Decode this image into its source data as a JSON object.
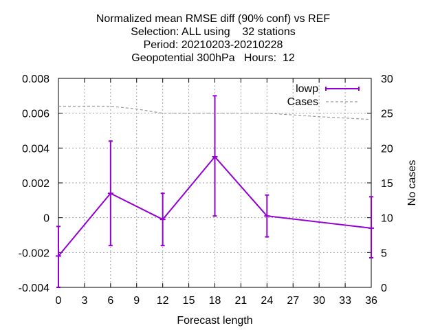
{
  "chart_data": {
    "type": "line",
    "title_lines": [
      "Normalized mean RMSE diff (90% conf) vs REF",
      "Selection: ALL using    32 stations",
      "Period: 20210203-20210228",
      "Geopotential 300hPa   Hours:  12"
    ],
    "xlabel": "Forecast length",
    "ylabel": "",
    "y2label": "No cases",
    "xlim": [
      0,
      36
    ],
    "ylim": [
      -0.004,
      0.008
    ],
    "y2lim": [
      0,
      30
    ],
    "x_ticks": [
      0,
      3,
      6,
      9,
      12,
      15,
      18,
      21,
      24,
      27,
      30,
      33,
      36
    ],
    "y_ticks": [
      -0.004,
      -0.002,
      0,
      0.002,
      0.004,
      0.006,
      0.008
    ],
    "y_tick_labels": [
      "-0.004",
      "-0.002",
      "0",
      "0.002",
      "0.004",
      "0.006",
      "0.008"
    ],
    "y2_ticks": [
      0,
      5,
      10,
      15,
      20,
      25,
      30
    ],
    "grid": true,
    "legend_position": "top-right",
    "series": [
      {
        "name": "lowp",
        "color": "#9400d3",
        "x": [
          0,
          6,
          12,
          18,
          24,
          36
        ],
        "y": [
          -0.0022,
          0.0014,
          -0.0001,
          0.0035,
          0.0001,
          -0.0006
        ],
        "err_low": [
          -0.004,
          -0.0016,
          -0.0016,
          0.0001,
          -0.0011,
          -0.0023
        ],
        "err_high": [
          -0.0005,
          0.0044,
          0.0014,
          0.007,
          0.0013,
          0.0012
        ]
      },
      {
        "name": "Cases",
        "color": "#999999",
        "axis": "y2",
        "x": [
          0,
          6,
          9,
          12,
          18,
          24,
          30,
          36
        ],
        "y": [
          26,
          26,
          25.6,
          25,
          25,
          25,
          24.5,
          24.1
        ]
      }
    ]
  }
}
